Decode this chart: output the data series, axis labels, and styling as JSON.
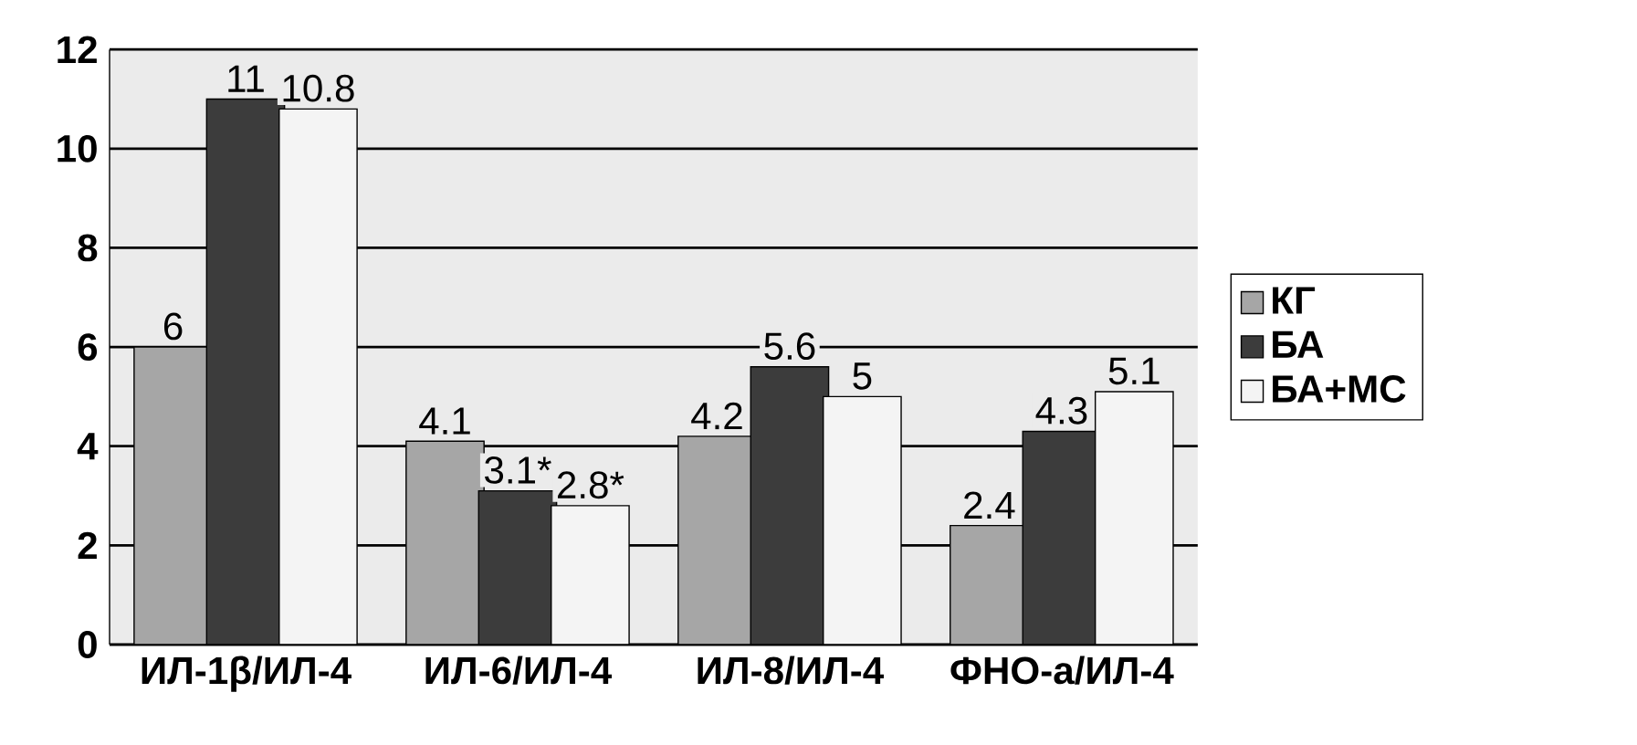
{
  "chart_data": {
    "type": "bar",
    "categories": [
      "ИЛ-1β/ИЛ-4",
      "ИЛ-6/ИЛ-4",
      "ИЛ-8/ИЛ-4",
      "ФНО-а/ИЛ-4"
    ],
    "series": [
      {
        "name": "КГ",
        "color": "#a6a6a6",
        "values": [
          6,
          4.1,
          4.2,
          2.4
        ],
        "value_labels": [
          "6",
          "4.1",
          "4.2",
          "2.4"
        ]
      },
      {
        "name": "БА",
        "color": "#3c3c3c",
        "values": [
          11,
          3.1,
          5.6,
          4.3
        ],
        "value_labels": [
          "11",
          "3.1*",
          "5.6",
          "4.3"
        ]
      },
      {
        "name": "БА+МС",
        "color": "#f4f4f4",
        "values": [
          10.8,
          2.8,
          5,
          5.1
        ],
        "value_labels": [
          "10.8",
          "2.8*",
          "5",
          "5.1"
        ]
      }
    ],
    "ylim": [
      0,
      12
    ],
    "yticks": [
      0,
      2,
      4,
      6,
      8,
      10,
      12
    ],
    "grid": "y",
    "legend": "right"
  }
}
